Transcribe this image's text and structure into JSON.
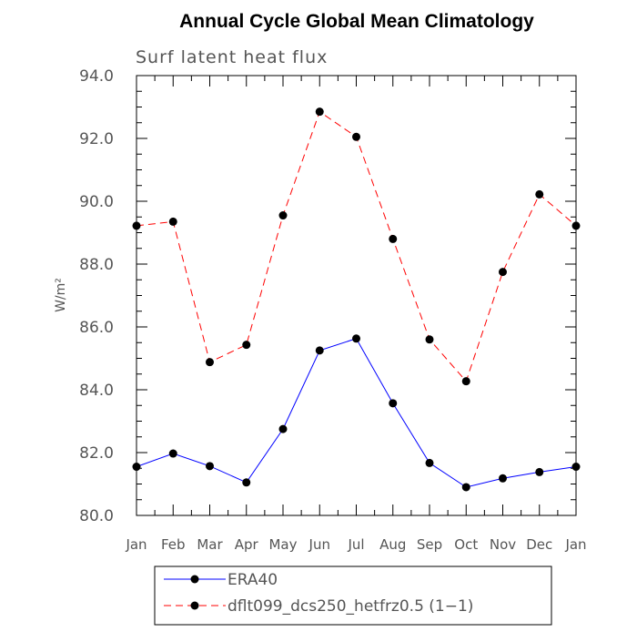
{
  "chart_data": {
    "type": "line",
    "title": "Annual Cycle Global Mean Climatology",
    "subtitle": "Surf latent heat flux",
    "ylabel": "W/m²",
    "xlabel": "",
    "ylim": [
      80.0,
      94.0
    ],
    "yticks": [
      "80.0",
      "82.0",
      "84.0",
      "86.0",
      "88.0",
      "90.0",
      "92.0",
      "94.0"
    ],
    "categories": [
      "Jan",
      "Feb",
      "Mar",
      "Apr",
      "May",
      "Jun",
      "Jul",
      "Aug",
      "Sep",
      "Oct",
      "Nov",
      "Dec",
      "Jan"
    ],
    "series": [
      {
        "name": "ERA40",
        "color": "#0000ff",
        "dash": "solid",
        "values": [
          81.55,
          81.97,
          81.57,
          81.05,
          82.75,
          85.25,
          85.63,
          83.57,
          81.67,
          80.9,
          81.18,
          81.38,
          81.55
        ]
      },
      {
        "name": "dflt099_dcs250_hetfrz0.5 (1−1)",
        "color": "#ff0000",
        "dash": "dashed",
        "values": [
          89.22,
          89.35,
          84.88,
          85.43,
          89.55,
          92.85,
          92.05,
          88.8,
          85.6,
          84.27,
          87.75,
          90.22,
          89.22
        ]
      }
    ],
    "grid": false,
    "legend": "bottom-center"
  }
}
